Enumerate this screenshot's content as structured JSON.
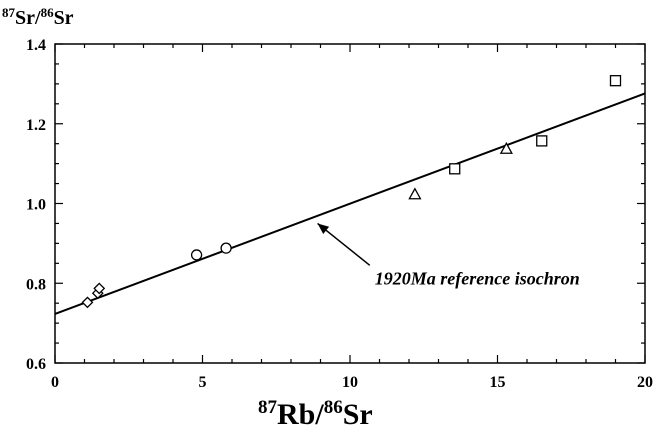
{
  "chart_data": {
    "type": "scatter",
    "title": "",
    "ylabel": {
      "sup1": "87",
      "main1": "Sr/",
      "sup2": "86",
      "main2": "Sr"
    },
    "xlabel": {
      "sup1": "87",
      "main1": "Rb/",
      "sup2": "86",
      "main2": "Sr"
    },
    "xlim": [
      0,
      20
    ],
    "ylim": [
      0.6,
      1.4
    ],
    "x_ticks": [
      "0",
      "5",
      "10",
      "15",
      "20"
    ],
    "y_ticks": [
      "0.6",
      "0.8",
      "1.0",
      "1.2",
      "1.4"
    ],
    "grid": false,
    "series": [
      {
        "marker": "diamond",
        "points": [
          [
            1.1,
            0.752
          ],
          [
            1.45,
            0.775
          ],
          [
            1.5,
            0.787
          ]
        ]
      },
      {
        "marker": "circle",
        "points": [
          [
            4.8,
            0.871
          ],
          [
            5.8,
            0.888
          ]
        ]
      },
      {
        "marker": "triangle",
        "points": [
          [
            12.2,
            1.022
          ],
          [
            15.3,
            1.136
          ]
        ]
      },
      {
        "marker": "square",
        "points": [
          [
            13.55,
            1.087
          ],
          [
            16.5,
            1.157
          ],
          [
            19.0,
            1.308
          ]
        ]
      }
    ],
    "reference_line": {
      "x": [
        0,
        20
      ],
      "y": [
        0.723,
        1.276
      ]
    },
    "annotation": {
      "text": "1920Ma reference isochron",
      "text_at": [
        10.5,
        0.84
      ],
      "arrow_to": [
        8.9,
        0.95
      ]
    }
  }
}
